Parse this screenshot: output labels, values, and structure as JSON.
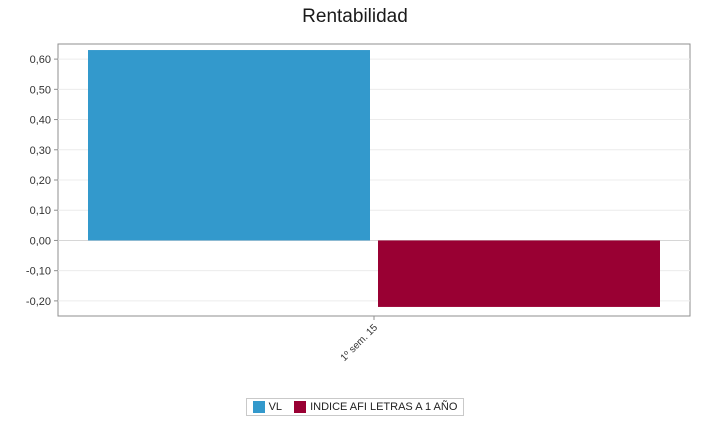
{
  "chart_data": {
    "type": "bar",
    "title": "Rentabilidad",
    "categories": [
      "1º sem. 15"
    ],
    "series": [
      {
        "name": "VL",
        "values": [
          0.63
        ],
        "color": "#3399cc"
      },
      {
        "name": "INDICE AFI LETRAS A 1 AÑO",
        "values": [
          -0.22
        ],
        "color": "#990033"
      }
    ],
    "ylim": [
      -0.25,
      0.65
    ],
    "yticks": [
      0.6,
      0.5,
      0.4,
      0.3,
      0.2,
      0.1,
      0.0,
      -0.1,
      -0.2
    ],
    "ytick_labels": [
      "0,60",
      "0,50",
      "0,40",
      "0,30",
      "0,20",
      "0,10",
      "0,00",
      "-0,10",
      "-0,20"
    ],
    "grid": true,
    "legend_position": "bottom"
  }
}
